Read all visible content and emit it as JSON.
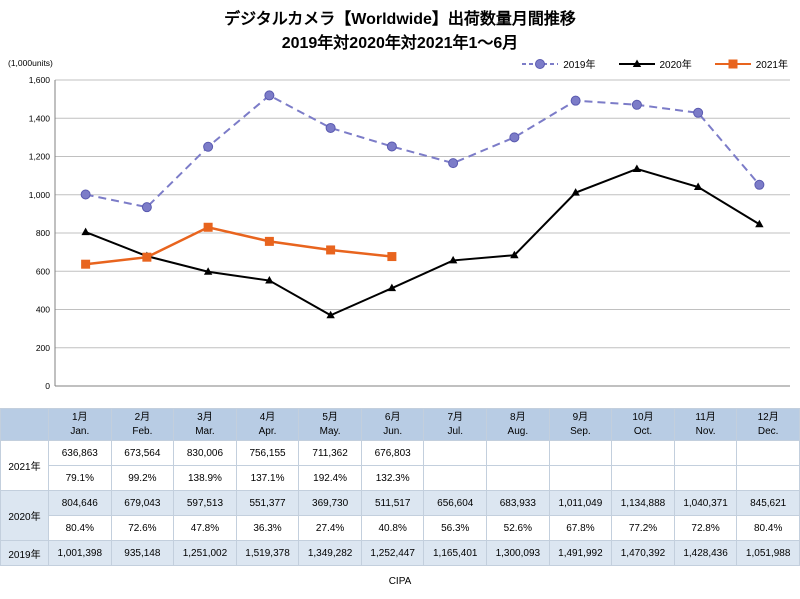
{
  "title": {
    "line1": "デジタルカメラ【Worldwide】出荷数量月間推移",
    "line2": "2019年対2020年対2021年1〜6月"
  },
  "units_label": "(1,000units)",
  "footer": "CIPA",
  "colors": {
    "header_bg": "#B8CCE4",
    "tint_bg": "#DCE6F1",
    "grid_line": "#C0C0C0",
    "axis_line": "#808080",
    "series_2019": "#7C7CC8",
    "series_2020": "#000000",
    "series_2021": "#E8641E"
  },
  "chart_data": {
    "type": "line",
    "title": "デジタルカメラ【Worldwide】出荷数量月間推移 2019年対2020年対2021年1〜6月",
    "ylabel": "(1,000units)",
    "ylim": [
      0,
      1600
    ],
    "ytick_step": 200,
    "yticks": [
      "0",
      "200",
      "400",
      "600",
      "800",
      "1,000",
      "1,200",
      "1,400",
      "1,600"
    ],
    "grid": true,
    "legend_position": "top-right",
    "categories": [
      {
        "jp": "1月",
        "en": "Jan."
      },
      {
        "jp": "2月",
        "en": "Feb."
      },
      {
        "jp": "3月",
        "en": "Mar."
      },
      {
        "jp": "4月",
        "en": "Apr."
      },
      {
        "jp": "5月",
        "en": "May."
      },
      {
        "jp": "6月",
        "en": "Jun."
      },
      {
        "jp": "7月",
        "en": "Jul."
      },
      {
        "jp": "8月",
        "en": "Aug."
      },
      {
        "jp": "9月",
        "en": "Sep."
      },
      {
        "jp": "10月",
        "en": "Oct."
      },
      {
        "jp": "11月",
        "en": "Nov."
      },
      {
        "jp": "12月",
        "en": "Dec."
      }
    ],
    "series": [
      {
        "name": "2019年",
        "color": "#7C7CC8",
        "marker_stroke": "#5A5AB0",
        "line_style": "dashed",
        "marker": "circle",
        "values": [
          1001.398,
          935.148,
          1251.002,
          1519.378,
          1349.282,
          1252.447,
          1165.401,
          1300.093,
          1491.992,
          1470.392,
          1428.436,
          1051.988
        ]
      },
      {
        "name": "2020年",
        "color": "#000000",
        "marker_stroke": "#000000",
        "line_style": "solid",
        "marker": "triangle",
        "values": [
          804.646,
          679.043,
          597.513,
          551.377,
          369.73,
          511.517,
          656.604,
          683.933,
          1011.049,
          1134.888,
          1040.371,
          845.621
        ]
      },
      {
        "name": "2021年",
        "color": "#E8641E",
        "marker_stroke": "#E8641E",
        "line_style": "solid",
        "marker": "square",
        "values": [
          636.863,
          673.564,
          830.006,
          756.155,
          711.362,
          676.803
        ]
      }
    ]
  },
  "table": {
    "corner_label": "",
    "columns": [
      {
        "jp": "1月",
        "en": "Jan."
      },
      {
        "jp": "2月",
        "en": "Feb."
      },
      {
        "jp": "3月",
        "en": "Mar."
      },
      {
        "jp": "4月",
        "en": "Apr."
      },
      {
        "jp": "5月",
        "en": "May."
      },
      {
        "jp": "6月",
        "en": "Jun."
      },
      {
        "jp": "7月",
        "en": "Jul."
      },
      {
        "jp": "8月",
        "en": "Aug."
      },
      {
        "jp": "9月",
        "en": "Sep."
      },
      {
        "jp": "10月",
        "en": "Oct."
      },
      {
        "jp": "11月",
        "en": "Nov."
      },
      {
        "jp": "12月",
        "en": "Dec."
      }
    ],
    "groups": [
      {
        "label": "2021年",
        "rows": [
          [
            "636,863",
            "673,564",
            "830,006",
            "756,155",
            "711,362",
            "676,803",
            "",
            "",
            "",
            "",
            "",
            ""
          ],
          [
            "79.1%",
            "99.2%",
            "138.9%",
            "137.1%",
            "192.4%",
            "132.3%",
            "",
            "",
            "",
            "",
            "",
            ""
          ]
        ]
      },
      {
        "label": "2020年",
        "rows": [
          [
            "804,646",
            "679,043",
            "597,513",
            "551,377",
            "369,730",
            "511,517",
            "656,604",
            "683,933",
            "1,011,049",
            "1,134,888",
            "1,040,371",
            "845,621"
          ],
          [
            "80.4%",
            "72.6%",
            "47.8%",
            "36.3%",
            "27.4%",
            "40.8%",
            "56.3%",
            "52.6%",
            "67.8%",
            "77.2%",
            "72.8%",
            "80.4%"
          ]
        ]
      },
      {
        "label": "2019年",
        "rows": [
          [
            "1,001,398",
            "935,148",
            "1,251,002",
            "1,519,378",
            "1,349,282",
            "1,252,447",
            "1,165,401",
            "1,300,093",
            "1,491,992",
            "1,470,392",
            "1,428,436",
            "1,051,988"
          ]
        ]
      }
    ]
  }
}
